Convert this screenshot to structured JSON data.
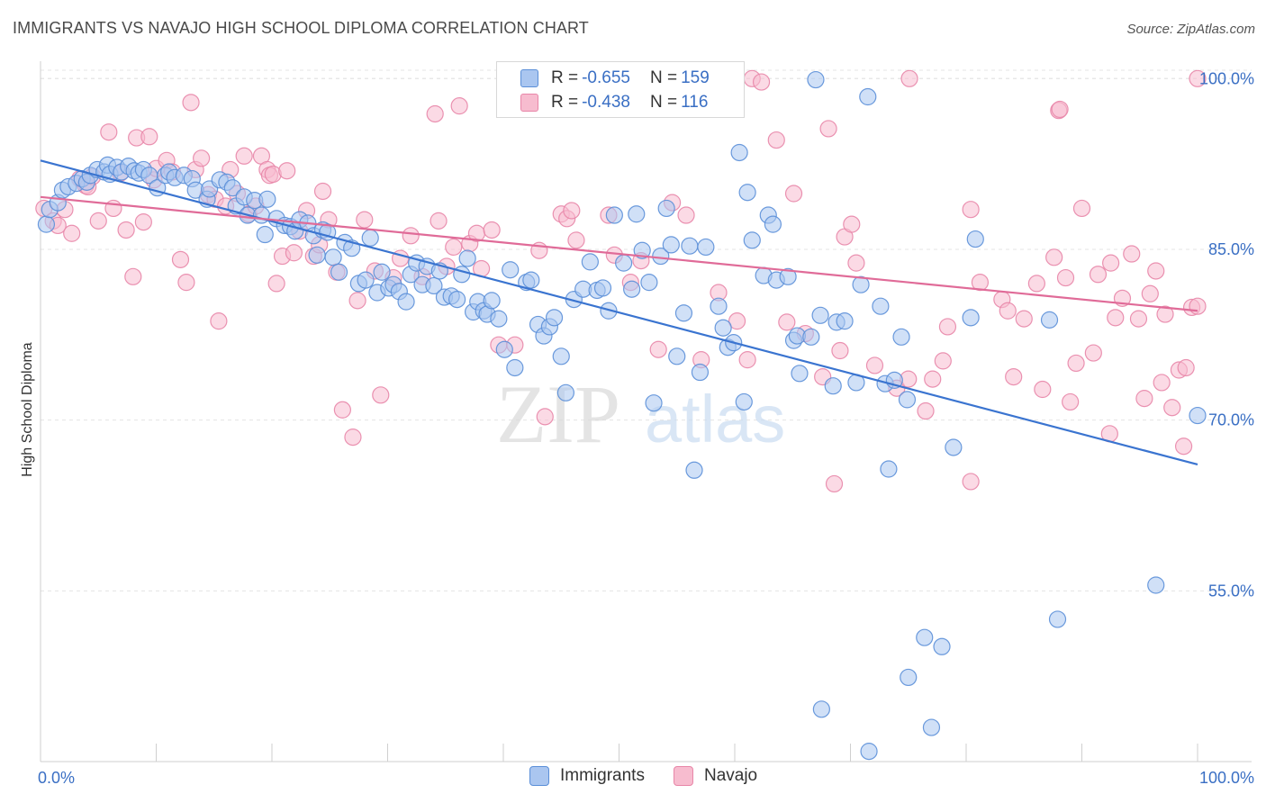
{
  "title": "IMMIGRANTS VS NAVAJO HIGH SCHOOL DIPLOMA CORRELATION CHART",
  "source": "Source: ZipAtlas.com",
  "watermark": {
    "zip": "ZIP",
    "atlas": "atlas"
  },
  "legend": {
    "r_label": "R =",
    "n_label": "N =",
    "rows": [
      {
        "name": "Immigrants",
        "r": "-0.655",
        "n": "159",
        "color": "#5b8fd8",
        "fill": "#aac6f0"
      },
      {
        "name": "Navajo",
        "r": "-0.438",
        "n": "116",
        "color": "#e886a8",
        "fill": "#f7bccf"
      }
    ]
  },
  "chart_data": {
    "type": "scatter",
    "title": "IMMIGRANTS VS NAVAJO HIGH SCHOOL DIPLOMA CORRELATION CHART",
    "xlabel": "",
    "ylabel": "High School Diploma",
    "xlim": [
      0,
      100
    ],
    "ylim": [
      40,
      102
    ],
    "x_tick_labels": [
      "0.0%",
      "100.0%"
    ],
    "y_ticks": [
      55,
      70,
      85,
      100
    ],
    "y_tick_labels": [
      "55.0%",
      "70.0%",
      "85.0%",
      "100.0%"
    ],
    "grid": true,
    "series": [
      {
        "name": "Immigrants",
        "color": "#5b8fd8",
        "trend": {
          "x": [
            0,
            100
          ],
          "y": [
            92.8,
            66.1
          ]
        },
        "points": [
          [
            0.5,
            87.2
          ],
          [
            0.8,
            88.5
          ],
          [
            1.5,
            89.1
          ],
          [
            1.9,
            90.2
          ],
          [
            2.4,
            90.5
          ],
          [
            3.1,
            90.8
          ],
          [
            3.6,
            91.2
          ],
          [
            4.0,
            90.9
          ],
          [
            4.3,
            91.5
          ],
          [
            4.9,
            92.0
          ],
          [
            5.5,
            91.8
          ],
          [
            5.8,
            92.4
          ],
          [
            6.0,
            91.6
          ],
          [
            6.6,
            92.2
          ],
          [
            7.0,
            91.8
          ],
          [
            7.6,
            92.3
          ],
          [
            8.1,
            91.9
          ],
          [
            8.5,
            91.7
          ],
          [
            8.9,
            92.0
          ],
          [
            9.4,
            91.5
          ],
          [
            10.1,
            90.4
          ],
          [
            10.8,
            91.5
          ],
          [
            11.1,
            91.8
          ],
          [
            11.6,
            91.3
          ],
          [
            12.4,
            91.5
          ],
          [
            13.1,
            91.2
          ],
          [
            13.4,
            90.2
          ],
          [
            14.4,
            89.4
          ],
          [
            14.6,
            90.3
          ],
          [
            15.5,
            91.1
          ],
          [
            16.1,
            90.9
          ],
          [
            16.6,
            90.4
          ],
          [
            16.9,
            88.8
          ],
          [
            17.6,
            89.6
          ],
          [
            17.9,
            88.0
          ],
          [
            18.5,
            89.3
          ],
          [
            19.1,
            88.0
          ],
          [
            19.4,
            86.3
          ],
          [
            19.6,
            89.4
          ],
          [
            20.4,
            87.7
          ],
          [
            21.1,
            87.1
          ],
          [
            21.6,
            87.0
          ],
          [
            22.0,
            86.6
          ],
          [
            22.4,
            87.6
          ],
          [
            23.1,
            87.3
          ],
          [
            23.6,
            86.2
          ],
          [
            23.9,
            84.5
          ],
          [
            24.4,
            86.7
          ],
          [
            24.8,
            86.5
          ],
          [
            25.3,
            84.3
          ],
          [
            25.8,
            83.0
          ],
          [
            26.3,
            85.6
          ],
          [
            26.9,
            85.1
          ],
          [
            27.5,
            82.0
          ],
          [
            28.1,
            82.3
          ],
          [
            28.5,
            86.0
          ],
          [
            29.1,
            81.2
          ],
          [
            29.5,
            83.0
          ],
          [
            30.1,
            81.6
          ],
          [
            30.5,
            81.9
          ],
          [
            31.0,
            81.3
          ],
          [
            31.6,
            80.4
          ],
          [
            32.0,
            82.8
          ],
          [
            32.5,
            83.8
          ],
          [
            33.0,
            81.9
          ],
          [
            33.4,
            83.5
          ],
          [
            34.0,
            81.8
          ],
          [
            34.5,
            83.1
          ],
          [
            34.9,
            80.8
          ],
          [
            35.5,
            80.9
          ],
          [
            36.0,
            80.6
          ],
          [
            36.4,
            82.8
          ],
          [
            36.9,
            84.2
          ],
          [
            37.4,
            79.5
          ],
          [
            37.8,
            80.4
          ],
          [
            38.3,
            79.6
          ],
          [
            38.6,
            79.3
          ],
          [
            39.0,
            80.5
          ],
          [
            39.6,
            78.9
          ],
          [
            40.1,
            76.2
          ],
          [
            40.6,
            83.2
          ],
          [
            41.0,
            74.6
          ],
          [
            42.0,
            82.1
          ],
          [
            42.4,
            82.3
          ],
          [
            43.0,
            78.4
          ],
          [
            43.5,
            77.4
          ],
          [
            44.0,
            78.2
          ],
          [
            44.4,
            79.0
          ],
          [
            45.0,
            75.6
          ],
          [
            45.4,
            72.4
          ],
          [
            46.1,
            80.6
          ],
          [
            46.9,
            81.5
          ],
          [
            47.5,
            83.9
          ],
          [
            48.1,
            81.4
          ],
          [
            48.6,
            81.6
          ],
          [
            49.1,
            79.6
          ],
          [
            49.6,
            88.0
          ],
          [
            50.4,
            83.8
          ],
          [
            51.1,
            81.5
          ],
          [
            51.5,
            88.1
          ],
          [
            52.0,
            84.9
          ],
          [
            52.6,
            82.1
          ],
          [
            53.0,
            71.5
          ],
          [
            53.6,
            84.4
          ],
          [
            54.1,
            88.6
          ],
          [
            54.5,
            85.4
          ],
          [
            55.0,
            75.6
          ],
          [
            55.6,
            79.4
          ],
          [
            56.1,
            85.3
          ],
          [
            56.5,
            65.6
          ],
          [
            57.0,
            74.2
          ],
          [
            57.5,
            85.2
          ],
          [
            58.6,
            80.0
          ],
          [
            59.0,
            78.1
          ],
          [
            59.4,
            76.4
          ],
          [
            59.9,
            76.8
          ],
          [
            60.4,
            93.5
          ],
          [
            60.8,
            71.6
          ],
          [
            61.1,
            90.0
          ],
          [
            61.5,
            85.8
          ],
          [
            62.5,
            82.7
          ],
          [
            62.9,
            88.0
          ],
          [
            63.3,
            87.2
          ],
          [
            63.6,
            82.3
          ],
          [
            64.6,
            82.6
          ],
          [
            65.1,
            77.0
          ],
          [
            65.6,
            74.1
          ],
          [
            65.4,
            77.4
          ],
          [
            66.6,
            77.3
          ],
          [
            67.0,
            99.9
          ],
          [
            67.4,
            79.2
          ],
          [
            68.5,
            73.0
          ],
          [
            68.8,
            78.6
          ],
          [
            69.5,
            78.7
          ],
          [
            70.5,
            73.3
          ],
          [
            70.9,
            81.9
          ],
          [
            71.5,
            98.4
          ],
          [
            72.6,
            80.0
          ],
          [
            73.0,
            73.2
          ],
          [
            73.3,
            65.7
          ],
          [
            73.8,
            73.5
          ],
          [
            74.4,
            77.3
          ],
          [
            74.9,
            71.8
          ],
          [
            75.0,
            47.4
          ],
          [
            76.4,
            50.9
          ],
          [
            77.0,
            43.0
          ],
          [
            77.9,
            50.1
          ],
          [
            78.9,
            67.6
          ],
          [
            80.4,
            79.0
          ],
          [
            80.8,
            85.9
          ],
          [
            87.2,
            78.8
          ],
          [
            87.9,
            52.5
          ],
          [
            96.4,
            55.5
          ],
          [
            100.0,
            70.4
          ],
          [
            67.5,
            44.6
          ],
          [
            71.6,
            40.9
          ]
        ]
      },
      {
        "name": "Navajo",
        "color": "#e886a8",
        "trend": {
          "x": [
            0,
            100
          ],
          "y": [
            89.6,
            79.6
          ]
        },
        "points": [
          [
            0.3,
            88.6
          ],
          [
            1.1,
            87.5
          ],
          [
            1.5,
            87.1
          ],
          [
            2.1,
            88.5
          ],
          [
            2.7,
            86.4
          ],
          [
            3.4,
            91.2
          ],
          [
            3.9,
            90.6
          ],
          [
            4.1,
            90.5
          ],
          [
            4.5,
            91.4
          ],
          [
            5.0,
            87.5
          ],
          [
            5.9,
            95.3
          ],
          [
            6.3,
            88.6
          ],
          [
            6.9,
            91.7
          ],
          [
            7.4,
            86.7
          ],
          [
            8.0,
            82.6
          ],
          [
            8.3,
            94.8
          ],
          [
            8.9,
            87.4
          ],
          [
            9.4,
            94.9
          ],
          [
            9.8,
            91.1
          ],
          [
            10.0,
            92.1
          ],
          [
            10.9,
            92.8
          ],
          [
            11.4,
            91.8
          ],
          [
            12.1,
            84.1
          ],
          [
            12.6,
            82.1
          ],
          [
            13.0,
            97.9
          ],
          [
            13.4,
            92.0
          ],
          [
            13.9,
            93.0
          ],
          [
            14.5,
            89.8
          ],
          [
            15.1,
            89.4
          ],
          [
            15.4,
            78.7
          ],
          [
            16.0,
            88.8
          ],
          [
            16.4,
            92.0
          ],
          [
            17.0,
            89.9
          ],
          [
            17.6,
            93.2
          ],
          [
            18.0,
            88.1
          ],
          [
            18.6,
            88.8
          ],
          [
            19.1,
            93.2
          ],
          [
            19.6,
            92.0
          ],
          [
            19.8,
            91.5
          ],
          [
            20.1,
            91.6
          ],
          [
            20.4,
            82.0
          ],
          [
            20.9,
            84.4
          ],
          [
            21.3,
            91.9
          ],
          [
            21.9,
            84.7
          ],
          [
            22.4,
            86.6
          ],
          [
            23.0,
            88.4
          ],
          [
            23.6,
            84.4
          ],
          [
            24.1,
            85.4
          ],
          [
            24.4,
            90.1
          ],
          [
            24.9,
            87.6
          ],
          [
            25.6,
            83.0
          ],
          [
            26.1,
            70.9
          ],
          [
            27.0,
            68.5
          ],
          [
            27.4,
            80.5
          ],
          [
            28.0,
            87.6
          ],
          [
            28.9,
            83.1
          ],
          [
            29.4,
            72.2
          ],
          [
            30.5,
            82.5
          ],
          [
            31.1,
            84.2
          ],
          [
            32.0,
            86.2
          ],
          [
            33.0,
            82.6
          ],
          [
            34.1,
            96.9
          ],
          [
            34.4,
            87.5
          ],
          [
            35.1,
            83.5
          ],
          [
            35.7,
            85.2
          ],
          [
            36.2,
            97.6
          ],
          [
            37.1,
            85.5
          ],
          [
            37.7,
            86.4
          ],
          [
            38.1,
            83.3
          ],
          [
            39.0,
            86.7
          ],
          [
            39.6,
            76.6
          ],
          [
            41.0,
            76.6
          ],
          [
            43.1,
            84.9
          ],
          [
            43.6,
            70.3
          ],
          [
            45.0,
            88.1
          ],
          [
            45.5,
            87.7
          ],
          [
            45.9,
            88.4
          ],
          [
            46.3,
            85.8
          ],
          [
            49.1,
            88.0
          ],
          [
            49.6,
            84.5
          ],
          [
            51.0,
            82.1
          ],
          [
            51.9,
            84.0
          ],
          [
            52.9,
            100.0
          ],
          [
            53.4,
            76.2
          ],
          [
            54.6,
            89.1
          ],
          [
            55.8,
            88.0
          ],
          [
            57.1,
            75.3
          ],
          [
            58.6,
            81.2
          ],
          [
            60.2,
            78.7
          ],
          [
            61.1,
            75.3
          ],
          [
            61.5,
            100.0
          ],
          [
            62.3,
            99.7
          ],
          [
            63.6,
            94.6
          ],
          [
            64.5,
            78.6
          ],
          [
            65.1,
            89.9
          ],
          [
            66.1,
            77.6
          ],
          [
            67.6,
            73.8
          ],
          [
            68.1,
            95.6
          ],
          [
            68.6,
            64.4
          ],
          [
            69.1,
            76.1
          ],
          [
            69.5,
            86.1
          ],
          [
            70.1,
            87.2
          ],
          [
            70.5,
            83.8
          ],
          [
            72.1,
            74.8
          ],
          [
            74.0,
            72.8
          ],
          [
            75.0,
            73.6
          ],
          [
            75.1,
            100.0
          ],
          [
            76.5,
            70.8
          ],
          [
            77.1,
            73.6
          ],
          [
            78.0,
            75.2
          ],
          [
            78.4,
            78.2
          ],
          [
            80.4,
            88.5
          ],
          [
            80.4,
            64.6
          ],
          [
            81.2,
            82.1
          ],
          [
            83.1,
            80.6
          ],
          [
            83.6,
            79.6
          ],
          [
            84.1,
            73.8
          ],
          [
            85.0,
            78.9
          ],
          [
            86.1,
            82.0
          ],
          [
            86.6,
            72.7
          ],
          [
            87.6,
            84.3
          ],
          [
            88.6,
            82.5
          ],
          [
            89.0,
            71.6
          ],
          [
            89.5,
            75.0
          ],
          [
            90.0,
            88.6
          ],
          [
            91.0,
            75.9
          ],
          [
            91.4,
            82.8
          ],
          [
            92.5,
            83.8
          ],
          [
            92.9,
            79.0
          ],
          [
            93.5,
            80.7
          ],
          [
            94.3,
            84.6
          ],
          [
            94.9,
            78.9
          ],
          [
            95.4,
            71.9
          ],
          [
            95.9,
            81.1
          ],
          [
            96.4,
            83.1
          ],
          [
            96.9,
            73.3
          ],
          [
            97.2,
            79.3
          ],
          [
            97.8,
            71.1
          ],
          [
            98.4,
            74.4
          ],
          [
            98.8,
            67.7
          ],
          [
            99.5,
            79.9
          ],
          [
            100.0,
            80.0
          ],
          [
            99.0,
            74.6
          ],
          [
            100.0,
            100.0
          ],
          [
            88.0,
            97.2
          ],
          [
            92.4,
            68.8
          ],
          [
            88.1,
            97.3
          ]
        ]
      }
    ]
  }
}
